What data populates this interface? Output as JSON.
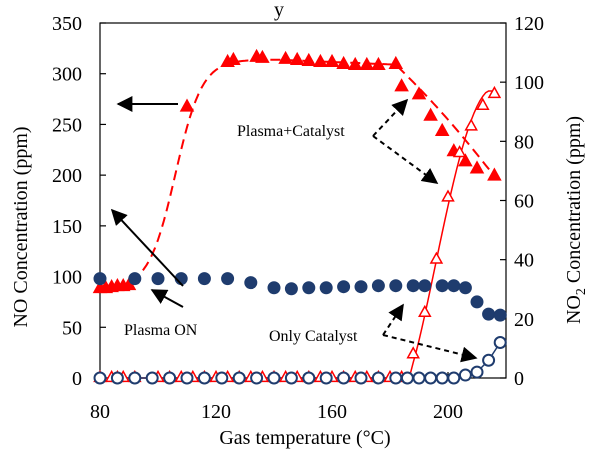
{
  "chart_data": {
    "type": "line",
    "title": "",
    "xlabel": "Gas temperature (°C)",
    "ylabel_left": "NO Concentration (ppm)",
    "ylabel_right_prefix": "NO",
    "ylabel_right_sub": "2",
    "ylabel_right_suffix": " Concentration (ppm)",
    "xlim": [
      80,
      220
    ],
    "ylim_left": [
      0,
      350
    ],
    "ylim_right": [
      0,
      120
    ],
    "xticks": [
      80,
      120,
      160,
      200
    ],
    "yticks_left": [
      0,
      50,
      100,
      150,
      200,
      250,
      300,
      350
    ],
    "yticks_right": [
      0,
      20,
      40,
      60,
      80,
      100,
      120
    ],
    "grid": false,
    "colors": {
      "red": "#ff0000",
      "navy": "#1f3c6e",
      "black": "#000000"
    },
    "series": [
      {
        "name": "Plasma+Catalyst NO",
        "axis": "left",
        "marker": "filled-triangle",
        "color": "#ff0000",
        "x": [
          80,
          82,
          84,
          86,
          88,
          90,
          110,
          124,
          126,
          134,
          136,
          144,
          148,
          152,
          156,
          160,
          164,
          168,
          172,
          176,
          182,
          184,
          190,
          194,
          198,
          202,
          206,
          210,
          216
        ],
        "y": [
          88,
          88,
          89,
          90,
          90,
          91,
          267,
          311,
          313,
          316,
          315,
          314,
          313,
          312,
          311,
          311,
          309,
          308,
          308,
          308,
          309,
          287,
          279,
          258,
          243,
          223,
          213,
          206,
          199
        ]
      },
      {
        "name": "Plasma+Catalyst NO2",
        "axis": "right",
        "marker": "open-triangle",
        "color": "#ff0000",
        "x": [
          80,
          84,
          86,
          88,
          92,
          100,
          104,
          108,
          112,
          116,
          120,
          124,
          128,
          132,
          136,
          140,
          144,
          148,
          152,
          156,
          160,
          164,
          168,
          172,
          176,
          180,
          184,
          188,
          192,
          196,
          200,
          204,
          208,
          212,
          216
        ],
        "y": [
          0,
          0,
          0,
          0,
          0,
          0,
          0,
          0,
          0,
          0,
          0,
          0,
          0,
          0,
          0,
          0,
          0,
          0,
          0,
          0,
          0,
          0,
          0,
          0,
          0,
          0,
          0,
          8,
          22,
          40,
          61,
          76,
          85,
          92,
          96
        ]
      },
      {
        "name": "Only Catalyst NO",
        "axis": "left",
        "marker": "filled-circle",
        "color": "#1f3c6e",
        "x": [
          80,
          92,
          100,
          108,
          116,
          124,
          132,
          140,
          146,
          152,
          158,
          164,
          170,
          176,
          182,
          188,
          192,
          198,
          202,
          206,
          210,
          214,
          218
        ],
        "y": [
          98,
          98,
          98,
          98,
          98,
          98,
          94,
          89,
          88,
          89,
          89,
          90,
          90,
          91,
          91,
          91,
          91,
          91,
          91,
          89,
          75,
          63,
          62
        ]
      },
      {
        "name": "Only Catalyst NO2",
        "axis": "right",
        "marker": "open-circle",
        "color": "#1f3c6e",
        "x": [
          80,
          86,
          92,
          98,
          104,
          110,
          116,
          122,
          128,
          134,
          140,
          146,
          152,
          158,
          164,
          170,
          176,
          182,
          186,
          190,
          194,
          198,
          202,
          206,
          210,
          214,
          218
        ],
        "y": [
          0,
          0,
          0,
          0,
          0,
          0,
          0,
          0,
          0,
          0,
          0,
          0,
          0,
          0,
          0,
          0,
          0,
          0,
          0,
          0,
          0,
          0,
          0,
          1,
          2,
          6,
          12
        ]
      }
    ],
    "annotations": {
      "plasma_catalyst": "Plasma+Catalyst",
      "plasma_on": "Plasma ON",
      "only_catalyst": "Only Catalyst",
      "title_fragment": "y"
    }
  }
}
